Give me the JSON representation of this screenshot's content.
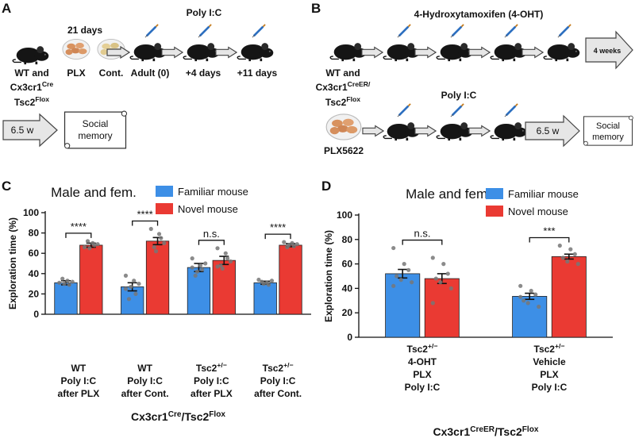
{
  "panel_labels": [
    "A",
    "B",
    "C",
    "D"
  ],
  "diagram_a": {
    "duration": "21 days",
    "treatment": "Poly I:C",
    "group": [
      [
        {
          "text": "WT and"
        }
      ],
      [
        {
          "text": "Cx3cr1"
        },
        {
          "text": "Cre",
          "sup": true
        }
      ],
      [
        {
          "text": "Tsc2"
        },
        {
          "text": "Flox",
          "sup": true
        }
      ]
    ],
    "diet": [
      "PLX",
      "Cont."
    ],
    "timepoints": [
      "Adult (0)",
      "+4 days",
      "+11 days"
    ],
    "wait": "6.5 w",
    "test": [
      "Social",
      "memory"
    ]
  },
  "diagram_b": {
    "treatment_1": "4-Hydroxytamoxifen (4-OHT)",
    "wait_1": "4 weeks",
    "group": [
      [
        {
          "text": "WT and"
        }
      ],
      [
        {
          "text": "Cx3cr1"
        },
        {
          "text": "CreER/",
          "sup": true
        }
      ],
      [
        {
          "text": "Tsc2"
        },
        {
          "text": "Flox",
          "sup": true
        }
      ]
    ],
    "treatment_2": "Poly I:C",
    "diet": "PLX5622",
    "wait_2": "6.5 w",
    "test": [
      "Social",
      "memory"
    ]
  },
  "chart_data": [
    {
      "type": "bar",
      "title": "Male and fem.",
      "ylabel": "Exploration time (%)",
      "xlabel": [
        {
          "text": "Cx3cr1"
        },
        {
          "text": "Cre",
          "sup": true
        },
        {
          "text": "/Tsc2"
        },
        {
          "text": "Flox",
          "sup": true
        }
      ],
      "categories": [
        [
          [
            {
              "text": "WT"
            }
          ],
          [
            {
              "text": "Poly I:C"
            }
          ],
          [
            {
              "text": "after PLX"
            }
          ]
        ],
        [
          [
            {
              "text": "WT"
            }
          ],
          [
            {
              "text": "Poly I:C"
            }
          ],
          [
            {
              "text": "after Cont."
            }
          ]
        ],
        [
          [
            {
              "text": "Tsc2"
            },
            {
              "text": "+/−",
              "sup": true
            }
          ],
          [
            {
              "text": "Poly I:C"
            }
          ],
          [
            {
              "text": "after PLX"
            }
          ]
        ],
        [
          [
            {
              "text": "Tsc2"
            },
            {
              "text": "+/−",
              "sup": true
            }
          ],
          [
            {
              "text": "Poly I:C"
            }
          ],
          [
            {
              "text": "after Cont."
            }
          ]
        ]
      ],
      "series": [
        {
          "name": "Familiar mouse",
          "color": "#3d8fe6",
          "values": [
            31,
            27,
            46,
            31
          ],
          "errors": [
            2,
            4,
            4,
            1.5
          ],
          "points": [
            [
              31,
              33,
              29,
              35,
              30,
              32
            ],
            [
              38,
              33,
              20,
              15,
              27,
              30,
              25
            ],
            [
              55,
              48,
              44,
              38,
              42,
              50,
              46
            ],
            [
              34,
              31,
              29,
              32,
              30,
              33
            ]
          ]
        },
        {
          "name": "Novel mouse",
          "color": "#ea3a33",
          "values": [
            68,
            72,
            53,
            68
          ],
          "errors": [
            2,
            3.5,
            4,
            1.5
          ],
          "points": [
            [
              66,
              70,
              68,
              72,
              65,
              69
            ],
            [
              84,
              79,
              75,
              66,
              62,
              70
            ],
            [
              65,
              60,
              55,
              48,
              45,
              52,
              47
            ],
            [
              71,
              70,
              67,
              66,
              68,
              69
            ]
          ]
        }
      ],
      "significance": [
        "****",
        "****",
        "n.s.",
        "****"
      ],
      "ylim": [
        0,
        100
      ],
      "yticks": [
        0,
        20,
        40,
        60,
        80,
        100
      ]
    },
    {
      "type": "bar",
      "title": "Male and fem.",
      "ylabel": "Exploration time (%)",
      "xlabel": [
        {
          "text": "Cx3cr1"
        },
        {
          "text": "CreER",
          "sup": true
        },
        {
          "text": "/Tsc2"
        },
        {
          "text": "Flox",
          "sup": true
        }
      ],
      "categories": [
        [
          [
            {
              "text": "Tsc2"
            },
            {
              "text": "+/−",
              "sup": true
            }
          ],
          [
            {
              "text": "4-OHT"
            }
          ],
          [
            {
              "text": "PLX"
            }
          ],
          [
            {
              "text": "Poly I:C"
            }
          ]
        ],
        [
          [
            {
              "text": "Tsc2"
            },
            {
              "text": "+/−",
              "sup": true
            }
          ],
          [
            {
              "text": "Vehicle"
            }
          ],
          [
            {
              "text": "PLX"
            }
          ],
          [
            {
              "text": "Poly I:C"
            }
          ]
        ]
      ],
      "series": [
        {
          "name": "Familiar mouse",
          "color": "#3d8fe6",
          "values": [
            52,
            33.5
          ],
          "errors": [
            3.5,
            2.5
          ],
          "points": [
            [
              73,
              60,
              55,
              50,
              47,
              45,
              42
            ],
            [
              42,
              38,
              35,
              30,
              28,
              25,
              33
            ]
          ]
        },
        {
          "name": "Novel mouse",
          "color": "#ea3a33",
          "values": [
            48,
            66
          ],
          "errors": [
            4,
            2
          ],
          "points": [
            [
              65,
              60,
              52,
              48,
              45,
              40,
              28
            ],
            [
              75,
              72,
              68,
              65,
              62,
              60
            ]
          ]
        }
      ],
      "significance": [
        "n.s.",
        "***"
      ],
      "ylim": [
        0,
        100
      ],
      "yticks": [
        0,
        20,
        40,
        60,
        80,
        100
      ]
    }
  ]
}
